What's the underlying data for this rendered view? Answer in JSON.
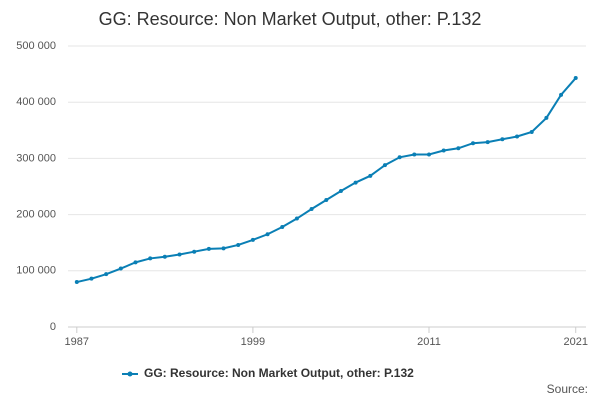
{
  "chart_data": {
    "type": "line",
    "title": "GG: Resource: Non Market Output, other: P.132",
    "x": [
      1987,
      1988,
      1989,
      1990,
      1991,
      1992,
      1993,
      1994,
      1995,
      1996,
      1997,
      1998,
      1999,
      2000,
      2001,
      2002,
      2003,
      2004,
      2005,
      2006,
      2007,
      2008,
      2009,
      2010,
      2011,
      2012,
      2013,
      2014,
      2015,
      2016,
      2017,
      2018,
      2019,
      2020,
      2021
    ],
    "series": [
      {
        "name": "GG: Resource: Non Market Output, other: P.132",
        "color": "#0a7fb5",
        "values": [
          80000,
          86000,
          94000,
          104000,
          115000,
          122000,
          125000,
          129000,
          134000,
          139000,
          140000,
          146000,
          155000,
          165000,
          178000,
          193000,
          210000,
          226000,
          242000,
          257000,
          269000,
          288000,
          302000,
          307000,
          307000,
          314000,
          318000,
          327000,
          329000,
          334000,
          339000,
          347000,
          372000,
          413000,
          443000
        ]
      }
    ],
    "xlim": [
      1986.4,
      2021.7
    ],
    "xticks": [
      1987,
      1999,
      2011,
      2021
    ],
    "ylim": [
      0,
      500000
    ],
    "yticks": [
      0,
      {
        "value": 100000,
        "label": "100 000"
      },
      {
        "value": 200000,
        "label": "200 000"
      },
      {
        "value": 300000,
        "label": "300 000"
      },
      {
        "value": 400000,
        "label": "400 000"
      },
      {
        "value": 500000,
        "label": "500 000"
      }
    ],
    "grid": true,
    "legend": "bottom",
    "source": "Source:"
  }
}
